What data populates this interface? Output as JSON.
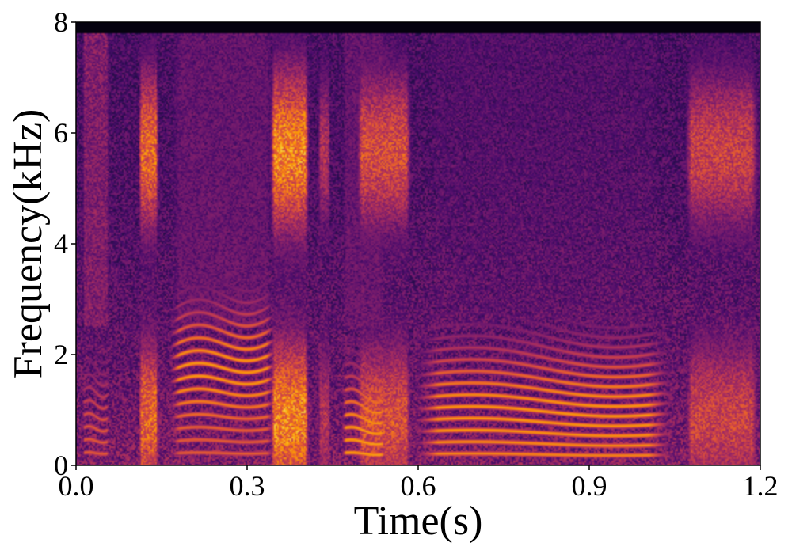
{
  "chart_data": {
    "type": "heatmap",
    "title": "",
    "xlabel": "Time(s)",
    "ylabel": "Frequency(kHz)",
    "xlim": [
      0.0,
      1.2
    ],
    "ylim": [
      0,
      8
    ],
    "x_ticks": [
      "0.0",
      "0.3",
      "0.6",
      "0.9",
      "1.2"
    ],
    "y_ticks": [
      "0",
      "2",
      "4",
      "6",
      "8"
    ],
    "grid": false,
    "colormap": "inferno",
    "colormap_colors": [
      "#000004",
      "#1b0c41",
      "#4a0c6b",
      "#781c6d",
      "#a52c60",
      "#cf4446",
      "#ed6925",
      "#fb9b06",
      "#f7d13d",
      "#fcffa4"
    ],
    "background_level": 0.28,
    "max_freq_content_khz": 7.8,
    "segments": [
      {
        "start": 0.01,
        "end": 0.06,
        "voiced": true,
        "f0_khz": 0.22,
        "f0_end_khz": 0.22,
        "level": 0.55,
        "harmonics": 10,
        "hf_level": 0.38
      },
      {
        "start": 0.11,
        "end": 0.145,
        "voiced": false,
        "level": 0.7
      },
      {
        "start": 0.16,
        "end": 0.355,
        "voiced": true,
        "f0_khz": 0.21,
        "f0_end_khz": 0.23,
        "level": 0.9,
        "harmonics": 18,
        "hf_level": 0.3,
        "formant_khz": 1.9
      },
      {
        "start": 0.34,
        "end": 0.41,
        "voiced": false,
        "level": 0.78
      },
      {
        "start": 0.425,
        "end": 0.445,
        "voiced": false,
        "level": 0.5
      },
      {
        "start": 0.465,
        "end": 0.545,
        "voiced": true,
        "f0_khz": 0.22,
        "f0_end_khz": 0.2,
        "level": 0.72,
        "harmonics": 12,
        "hf_level": 0.3
      },
      {
        "start": 0.49,
        "end": 0.59,
        "voiced": false,
        "level": 0.62
      },
      {
        "start": 0.585,
        "end": 1.055,
        "voiced": true,
        "f0_khz": 0.2,
        "f0_end_khz": 0.19,
        "level": 0.78,
        "harmonics": 20,
        "hf_level": 0.22,
        "formant_khz": 1.2
      },
      {
        "start": 1.065,
        "end": 1.2,
        "voiced": false,
        "level": 0.58
      }
    ]
  }
}
